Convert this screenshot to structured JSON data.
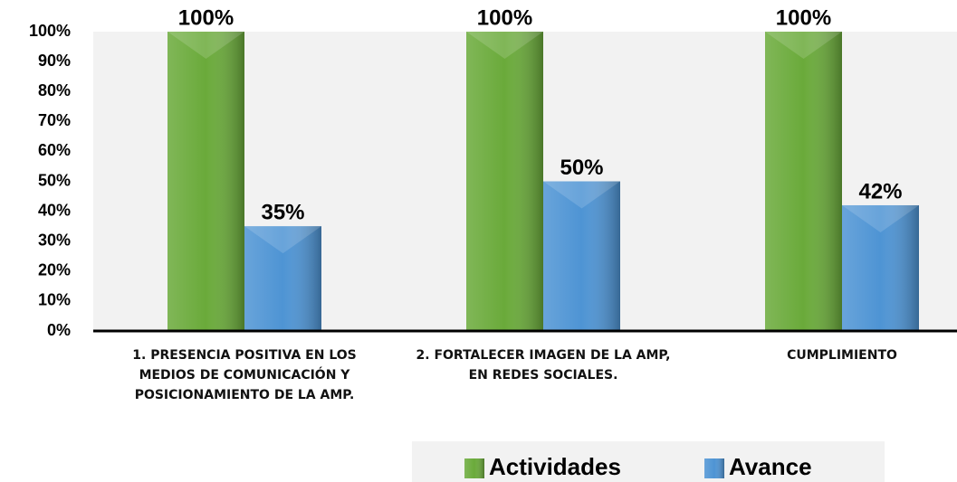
{
  "chart_data": {
    "type": "bar",
    "categories": [
      "1. PRESENCIA POSITIVA EN LOS MEDIOS DE COMUNICACIÓN Y POSICIONAMIENTO DE LA AMP.",
      "2. FORTALECER IMAGEN DE LA AMP, EN REDES SOCIALES.",
      "CUMPLIMIENTO"
    ],
    "series": [
      {
        "name": "Actividades",
        "color": "#6aaa3a",
        "values": [
          100,
          100,
          100
        ],
        "value_labels": [
          "100%",
          "100%",
          "100%"
        ]
      },
      {
        "name": "Avance",
        "color": "#4e94d4",
        "values": [
          35,
          50,
          42
        ],
        "value_labels": [
          "35%",
          "50%",
          "42%"
        ]
      }
    ],
    "ylim": [
      0,
      100
    ],
    "yticks": [
      {
        "value": 0,
        "label": "0%"
      },
      {
        "value": 10,
        "label": "10%"
      },
      {
        "value": 20,
        "label": "20%"
      },
      {
        "value": 30,
        "label": "30%"
      },
      {
        "value": 40,
        "label": "40%"
      },
      {
        "value": 50,
        "label": "50%"
      },
      {
        "value": 60,
        "label": "60%"
      },
      {
        "value": 70,
        "label": "70%"
      },
      {
        "value": 80,
        "label": "80%"
      },
      {
        "value": 90,
        "label": "90%"
      },
      {
        "value": 100,
        "label": "100%"
      }
    ],
    "legend": "bottom"
  }
}
